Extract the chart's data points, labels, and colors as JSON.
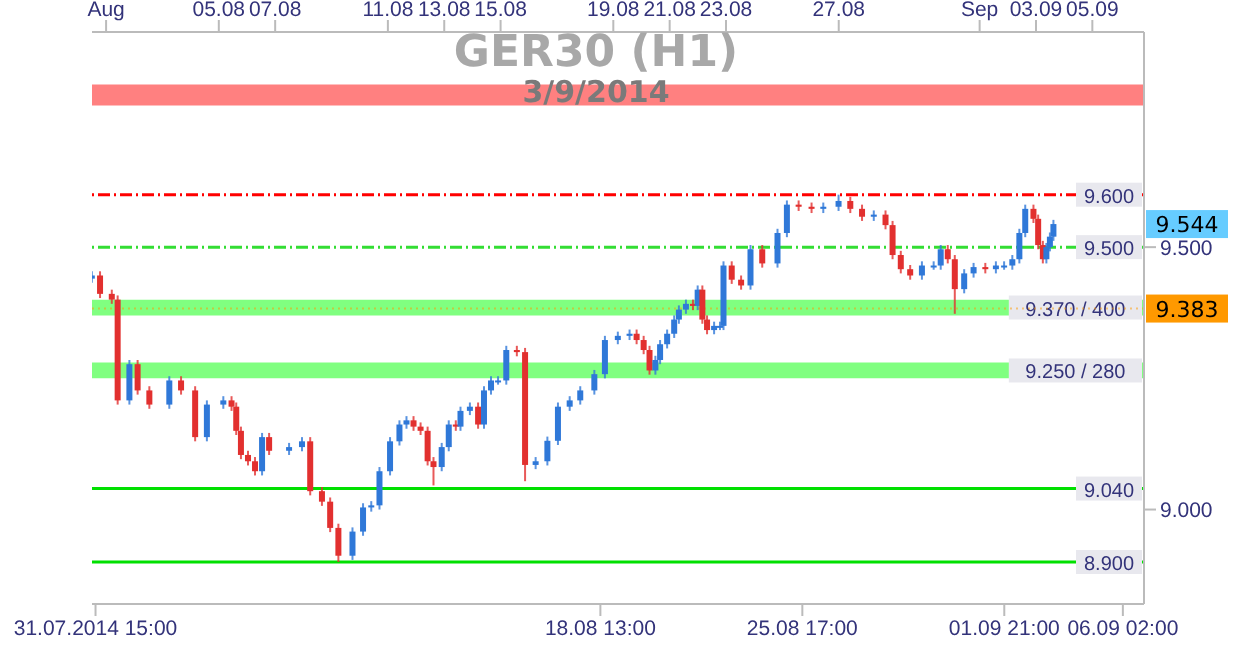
{
  "chart_data": {
    "type": "candlestick",
    "title": "GER30 (H1)",
    "subtitle": "3/9/2014",
    "x": [
      "2014-07-31T12:00",
      "2014-07-31T19:00",
      "2014-08-01T05:00",
      "2014-08-01T10:00",
      "2014-08-01T20:00",
      "2014-08-02T03:00",
      "2014-08-02T13:00",
      "2014-08-03T06:00",
      "2014-08-03T16:00",
      "2014-08-04T04:00",
      "2014-08-04T14:00",
      "2014-08-05T04:00",
      "2014-08-05T11:00",
      "2014-08-05T15:00",
      "2014-08-05T19:00",
      "2014-08-06T01:00",
      "2014-08-06T07:00",
      "2014-08-06T13:00",
      "2014-08-06T19:00",
      "2014-08-07T12:00",
      "2014-08-07T23:00",
      "2014-08-08T06:00",
      "2014-08-08T16:00",
      "2014-08-08T23:00",
      "2014-08-09T06:00",
      "2014-08-09T18:00",
      "2014-08-10T03:00",
      "2014-08-10T10:00",
      "2014-08-10T17:00",
      "2014-08-11T02:00",
      "2014-08-11T10:00",
      "2014-08-11T16:00",
      "2014-08-11T22:00",
      "2014-08-12T04:00",
      "2014-08-12T10:00",
      "2014-08-12T15:00",
      "2014-08-12T22:00",
      "2014-08-13T04:00",
      "2014-08-13T10:00",
      "2014-08-13T14:00",
      "2014-08-13T22:00",
      "2014-08-14T05:00",
      "2014-08-14T10:00",
      "2014-08-14T16:00",
      "2014-08-14T22:00",
      "2014-08-15T05:00",
      "2014-08-15T14:00",
      "2014-08-15T21:00",
      "2014-08-16T06:00",
      "2014-08-16T16:00",
      "2014-08-17T01:00",
      "2014-08-17T11:00",
      "2014-08-17T20:00",
      "2014-08-18T08:00",
      "2014-08-18T17:00",
      "2014-08-19T04:00",
      "2014-08-19T14:00",
      "2014-08-19T20:00",
      "2014-08-20T02:00",
      "2014-08-20T07:00",
      "2014-08-20T12:00",
      "2014-08-20T16:00",
      "2014-08-20T22:00",
      "2014-08-21T04:00",
      "2014-08-21T08:00",
      "2014-08-21T14:00",
      "2014-08-21T20:00",
      "2014-08-22T00:00",
      "2014-08-22T04:00",
      "2014-08-22T08:00",
      "2014-08-22T14:00",
      "2014-08-22T19:00",
      "2014-08-22T22:00",
      "2014-08-23T05:00",
      "2014-08-23T13:00",
      "2014-08-23T21:00",
      "2014-08-24T07:00",
      "2014-08-24T20:00",
      "2014-08-25T04:00",
      "2014-08-25T14:00",
      "2014-08-26T01:00",
      "2014-08-26T11:00",
      "2014-08-27T00:00",
      "2014-08-27T10:00",
      "2014-08-27T20:00",
      "2014-08-28T06:00",
      "2014-08-28T16:00",
      "2014-08-28T22:00",
      "2014-08-29T05:00",
      "2014-08-29T13:00",
      "2014-08-29T23:00",
      "2014-08-30T09:00",
      "2014-08-30T15:00",
      "2014-08-30T21:00",
      "2014-08-31T03:00",
      "2014-08-31T11:00",
      "2014-08-31T19:00",
      "2014-09-01T05:00",
      "2014-09-01T14:00",
      "2014-09-01T21:00",
      "2014-09-02T04:00",
      "2014-09-02T10:00",
      "2014-09-02T15:00",
      "2014-09-02T22:00",
      "2014-09-03T02:00",
      "2014-09-03T06:00",
      "2014-09-03T09:00",
      "2014-09-03T12:00",
      "2014-09-03T15:00"
    ],
    "ohlc": [
      [
        9.44,
        9.454,
        9.432,
        9.446
      ],
      [
        9.446,
        9.454,
        9.403,
        9.411
      ],
      [
        9.411,
        9.419,
        9.392,
        9.4
      ],
      [
        9.4,
        9.408,
        9.2,
        9.208
      ],
      [
        9.208,
        9.285,
        9.2,
        9.277
      ],
      [
        9.277,
        9.285,
        9.219,
        9.227
      ],
      [
        9.227,
        9.235,
        9.192,
        9.2
      ],
      [
        9.2,
        9.254,
        9.192,
        9.246
      ],
      [
        9.246,
        9.254,
        9.219,
        9.227
      ],
      [
        9.227,
        9.235,
        9.13,
        9.138
      ],
      [
        9.138,
        9.208,
        9.13,
        9.2
      ],
      [
        9.2,
        9.216,
        9.192,
        9.208
      ],
      [
        9.208,
        9.216,
        9.188,
        9.196
      ],
      [
        9.196,
        9.204,
        9.142,
        9.15
      ],
      [
        9.15,
        9.158,
        9.096,
        9.104
      ],
      [
        9.104,
        9.112,
        9.084,
        9.092
      ],
      [
        9.092,
        9.1,
        9.065,
        9.073
      ],
      [
        9.073,
        9.146,
        9.065,
        9.138
      ],
      [
        9.138,
        9.146,
        9.104,
        9.112
      ],
      [
        9.112,
        9.127,
        9.104,
        9.119
      ],
      [
        9.119,
        9.138,
        9.111,
        9.13
      ],
      [
        9.13,
        9.138,
        9.027,
        9.035
      ],
      [
        9.035,
        9.043,
        9.007,
        9.015
      ],
      [
        9.015,
        9.023,
        8.957,
        8.965
      ],
      [
        8.965,
        8.973,
        8.9,
        8.912
      ],
      [
        8.912,
        8.966,
        8.904,
        8.958
      ],
      [
        8.958,
        9.012,
        8.95,
        9.004
      ],
      [
        9.004,
        9.016,
        8.996,
        9.008
      ],
      [
        9.008,
        9.081,
        9.0,
        9.073
      ],
      [
        9.073,
        9.138,
        9.065,
        9.13
      ],
      [
        9.13,
        9.17,
        9.122,
        9.162
      ],
      [
        9.162,
        9.178,
        9.154,
        9.17
      ],
      [
        9.17,
        9.178,
        9.15,
        9.158
      ],
      [
        9.158,
        9.166,
        9.142,
        9.15
      ],
      [
        9.15,
        9.158,
        9.084,
        9.092
      ],
      [
        9.092,
        9.1,
        9.046,
        9.081
      ],
      [
        9.081,
        9.127,
        9.073,
        9.119
      ],
      [
        9.119,
        9.17,
        9.111,
        9.162
      ],
      [
        9.162,
        9.17,
        9.15,
        9.158
      ],
      [
        9.158,
        9.196,
        9.15,
        9.188
      ],
      [
        9.188,
        9.204,
        9.18,
        9.196
      ],
      [
        9.196,
        9.204,
        9.154,
        9.162
      ],
      [
        9.162,
        9.235,
        9.154,
        9.227
      ],
      [
        9.227,
        9.254,
        9.219,
        9.246
      ],
      [
        9.246,
        9.254,
        9.238,
        9.246
      ],
      [
        9.246,
        9.312,
        9.238,
        9.304
      ],
      [
        9.304,
        9.312,
        9.292,
        9.3
      ],
      [
        9.3,
        9.308,
        9.054,
        9.085
      ],
      [
        9.085,
        9.1,
        9.077,
        9.092
      ],
      [
        9.092,
        9.139,
        9.084,
        9.131
      ],
      [
        9.131,
        9.204,
        9.123,
        9.196
      ],
      [
        9.196,
        9.216,
        9.188,
        9.208
      ],
      [
        9.208,
        9.235,
        9.2,
        9.227
      ],
      [
        9.227,
        9.266,
        9.219,
        9.258
      ],
      [
        9.258,
        9.331,
        9.25,
        9.323
      ],
      [
        9.323,
        9.339,
        9.315,
        9.331
      ],
      [
        9.331,
        9.343,
        9.323,
        9.335
      ],
      [
        9.335,
        9.343,
        9.315,
        9.323
      ],
      [
        9.323,
        9.331,
        9.296,
        9.304
      ],
      [
        9.304,
        9.312,
        9.257,
        9.265
      ],
      [
        9.265,
        9.293,
        9.257,
        9.285
      ],
      [
        9.285,
        9.323,
        9.277,
        9.315
      ],
      [
        9.315,
        9.343,
        9.307,
        9.335
      ],
      [
        9.335,
        9.37,
        9.327,
        9.362
      ],
      [
        9.362,
        9.389,
        9.354,
        9.381
      ],
      [
        9.381,
        9.4,
        9.373,
        9.392
      ],
      [
        9.392,
        9.4,
        9.38,
        9.388
      ],
      [
        9.388,
        9.427,
        9.38,
        9.419
      ],
      [
        9.419,
        9.427,
        9.354,
        9.362
      ],
      [
        9.362,
        9.37,
        9.334,
        9.342
      ],
      [
        9.342,
        9.358,
        9.334,
        9.35
      ],
      [
        9.35,
        9.358,
        9.342,
        9.35
      ],
      [
        9.35,
        9.473,
        9.342,
        9.465
      ],
      [
        9.465,
        9.473,
        9.43,
        9.438
      ],
      [
        9.438,
        9.446,
        9.419,
        9.427
      ],
      [
        9.427,
        9.504,
        9.419,
        9.496
      ],
      [
        9.496,
        9.504,
        9.461,
        9.469
      ],
      [
        9.469,
        9.535,
        9.461,
        9.527
      ],
      [
        9.527,
        9.589,
        9.519,
        9.581
      ],
      [
        9.581,
        9.589,
        9.569,
        9.577
      ],
      [
        9.577,
        9.585,
        9.565,
        9.573
      ],
      [
        9.573,
        9.585,
        9.565,
        9.577
      ],
      [
        9.577,
        9.6,
        9.569,
        9.588
      ],
      [
        9.588,
        9.596,
        9.565,
        9.573
      ],
      [
        9.573,
        9.581,
        9.55,
        9.558
      ],
      [
        9.558,
        9.57,
        9.55,
        9.562
      ],
      [
        9.562,
        9.57,
        9.534,
        9.542
      ],
      [
        9.542,
        9.55,
        9.477,
        9.485
      ],
      [
        9.485,
        9.493,
        9.45,
        9.458
      ],
      [
        9.458,
        9.466,
        9.438,
        9.446
      ],
      [
        9.446,
        9.473,
        9.438,
        9.465
      ],
      [
        9.465,
        9.473,
        9.457,
        9.465
      ],
      [
        9.465,
        9.504,
        9.457,
        9.496
      ],
      [
        9.496,
        9.504,
        9.469,
        9.477
      ],
      [
        9.477,
        9.485,
        9.373,
        9.42
      ],
      [
        9.42,
        9.458,
        9.412,
        9.45
      ],
      [
        9.45,
        9.47,
        9.442,
        9.462
      ],
      [
        9.462,
        9.47,
        9.45,
        9.458
      ],
      [
        9.458,
        9.473,
        9.45,
        9.465
      ],
      [
        9.465,
        9.473,
        9.457,
        9.465
      ],
      [
        9.465,
        9.485,
        9.457,
        9.477
      ],
      [
        9.477,
        9.535,
        9.469,
        9.527
      ],
      [
        9.527,
        9.581,
        9.519,
        9.573
      ],
      [
        9.573,
        9.581,
        9.546,
        9.554
      ],
      [
        9.554,
        9.562,
        9.496,
        9.504
      ],
      [
        9.504,
        9.512,
        9.469,
        9.477
      ],
      [
        9.477,
        9.508,
        9.469,
        9.5
      ],
      [
        9.5,
        9.528,
        9.492,
        9.52
      ],
      [
        9.52,
        9.552,
        9.512,
        9.544
      ]
    ],
    "xlim": [
      "2014-07-31T12:00",
      "2014-09-06T20:00"
    ],
    "xticks": [
      {
        "value": "2014-07-31T15:00",
        "label": "31.07.2014 15:00"
      },
      {
        "value": "2014-08-18T13:00",
        "label": "18.08 13:00"
      },
      {
        "value": "2014-08-25T17:00",
        "label": "25.08 17:00"
      },
      {
        "value": "2014-09-01T21:00",
        "label": "01.09 21:00"
      },
      {
        "value": "2014-09-06T02:00",
        "label": "06.09 02:00"
      }
    ],
    "x2lim": [
      "2014-07-31T12:00",
      "2014-09-06T20:00"
    ],
    "x2ticks": [
      {
        "value": "2014-08-01",
        "label": "Aug"
      },
      {
        "value": "2014-08-05",
        "label": "05.08"
      },
      {
        "value": "2014-08-07",
        "label": "07.08"
      },
      {
        "value": "2014-08-11",
        "label": "11.08"
      },
      {
        "value": "2014-08-13",
        "label": "13.08"
      },
      {
        "value": "2014-08-15",
        "label": "15.08"
      },
      {
        "value": "2014-08-19",
        "label": "19.08"
      },
      {
        "value": "2014-08-21",
        "label": "21.08"
      },
      {
        "value": "2014-08-23",
        "label": "23.08"
      },
      {
        "value": "2014-08-27",
        "label": "27.08"
      },
      {
        "value": "2014-09-01",
        "label": "Sep"
      },
      {
        "value": "2014-09-03",
        "label": "03.09"
      },
      {
        "value": "2014-09-05",
        "label": "05.09"
      }
    ],
    "ylim": [
      8.82,
      9.91
    ],
    "yticks": [
      {
        "value": 9.0,
        "label": "9.000"
      },
      {
        "value": 9.5,
        "label": "9.500"
      }
    ],
    "ref_lines": [
      {
        "axis": "y",
        "value": 9.6,
        "label": "9.600",
        "color": "#ff0000",
        "line_style": "dashed"
      },
      {
        "axis": "y",
        "value": 9.5,
        "label": "9.500",
        "color": "#33dd33",
        "line_style": "dashed"
      },
      {
        "axis": "y",
        "value": 9.04,
        "label": "9.040",
        "color": "#00e000",
        "line_style": "solid"
      },
      {
        "axis": "y",
        "value": 8.9,
        "label": "8.900",
        "color": "#00e000",
        "line_style": "solid"
      },
      {
        "axis": "y",
        "value": 9.383,
        "label": "9.383",
        "color": "#ff9900",
        "line_style": "dotted"
      }
    ],
    "bands": [
      {
        "axis": "y",
        "from": 9.77,
        "to": 9.81,
        "color": "#ff8080"
      },
      {
        "axis": "y",
        "from": 9.37,
        "to": 9.4,
        "label": "9.370 / 400",
        "color": "#80ff80"
      },
      {
        "axis": "y",
        "from": 9.25,
        "to": 9.28,
        "label": "9.250 / 280",
        "color": "#80ff80"
      }
    ],
    "annotations": [
      {
        "text": "9.544",
        "y": 9.544
      }
    ]
  }
}
